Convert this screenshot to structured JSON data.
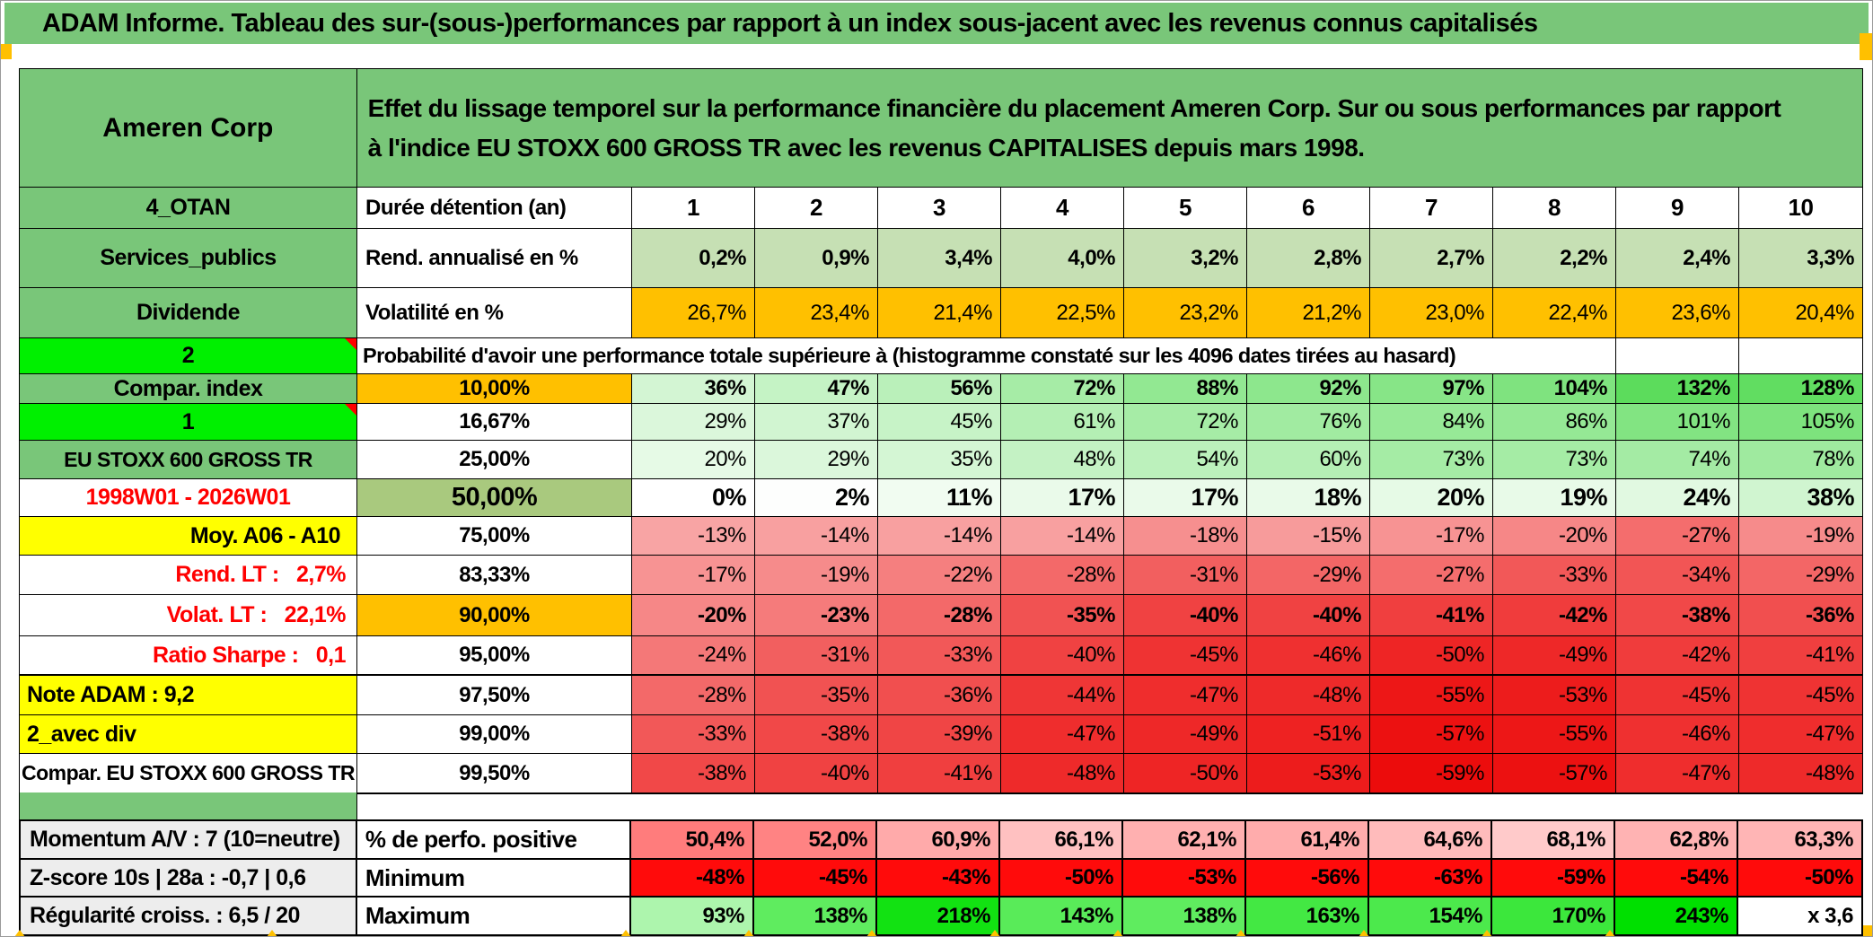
{
  "app": {
    "title": "ADAM Informe. Tableau des sur-(sous-)performances par rapport à un index sous-jacent avec les revenus connus capitalisés"
  },
  "header": {
    "security": "Ameren Corp",
    "description": "Effet du lissage temporel sur la performance financière du placement Ameren Corp. Sur ou sous performances par rapport à l'indice EU STOXX 600 GROSS TR avec les revenus CAPITALISES depuis mars 1998."
  },
  "colors": {
    "header_green": "#79C679",
    "bright_green": "#00F000",
    "orange": "#FFC000",
    "yellow": "#FFFF00",
    "olive_green": "#A9C97E",
    "light_green": "#C6E0B4",
    "label_gray": "#EDEDED",
    "red_text": "#FF0000",
    "heat_red_max": "#EC0C0C",
    "heat_green_max": "#5CDC5C"
  },
  "rows": {
    "duration": {
      "label": "4_OTAN",
      "metric": "Durée détention (an)",
      "values": [
        "1",
        "2",
        "3",
        "4",
        "5",
        "6",
        "7",
        "8",
        "9",
        "10"
      ]
    },
    "annual": {
      "label": "Services_publics",
      "metric": "Rend. annualisé en %",
      "values": [
        "0,2%",
        "0,9%",
        "3,4%",
        "4,0%",
        "3,2%",
        "2,8%",
        "2,7%",
        "2,2%",
        "2,4%",
        "3,3%"
      ]
    },
    "volatility": {
      "label": "Dividende",
      "metric": "Volatilité en %",
      "values": [
        "26,7%",
        "23,4%",
        "21,4%",
        "22,5%",
        "23,2%",
        "21,2%",
        "23,0%",
        "22,4%",
        "23,6%",
        "20,4%"
      ]
    },
    "prob": {
      "label": "2",
      "text": "Probabilité d'avoir une performance totale supérieure à (histogramme constaté sur les 4096 dates tirées au hasard)"
    },
    "p10": {
      "label": "Compar. index",
      "metric": "10,00%",
      "values": [
        "36%",
        "47%",
        "56%",
        "72%",
        "88%",
        "92%",
        "97%",
        "104%",
        "132%",
        "128%"
      ]
    },
    "p1667": {
      "label": "1",
      "metric": "16,67%",
      "values": [
        "29%",
        "37%",
        "45%",
        "61%",
        "72%",
        "76%",
        "84%",
        "86%",
        "101%",
        "105%"
      ]
    },
    "p25": {
      "label": "EU STOXX 600 GROSS TR",
      "metric": "25,00%",
      "values": [
        "20%",
        "29%",
        "35%",
        "48%",
        "54%",
        "60%",
        "73%",
        "73%",
        "74%",
        "78%"
      ]
    },
    "p50": {
      "label": "1998W01 - 2026W01",
      "metric": "50,00%",
      "values": [
        "0%",
        "2%",
        "11%",
        "17%",
        "17%",
        "18%",
        "20%",
        "19%",
        "24%",
        "38%"
      ]
    },
    "p75": {
      "label": "Moy. A06 - A10",
      "metric": "75,00%",
      "values": [
        "-13%",
        "-14%",
        "-14%",
        "-14%",
        "-18%",
        "-15%",
        "-17%",
        "-20%",
        "-27%",
        "-19%"
      ]
    },
    "p8333": {
      "label": "Rend. LT :   2,7%",
      "metric": "83,33%",
      "values": [
        "-17%",
        "-19%",
        "-22%",
        "-28%",
        "-31%",
        "-29%",
        "-27%",
        "-33%",
        "-34%",
        "-29%"
      ]
    },
    "p90": {
      "label": "Volat. LT :   22,1%",
      "metric": "90,00%",
      "values": [
        "-20%",
        "-23%",
        "-28%",
        "-35%",
        "-40%",
        "-40%",
        "-41%",
        "-42%",
        "-38%",
        "-36%"
      ]
    },
    "p95": {
      "label": "Ratio Sharpe :   0,1",
      "metric": "95,00%",
      "values": [
        "-24%",
        "-31%",
        "-33%",
        "-40%",
        "-45%",
        "-46%",
        "-50%",
        "-49%",
        "-42%",
        "-41%"
      ]
    },
    "p975": {
      "label": "Note ADAM : 9,2",
      "metric": "97,50%",
      "values": [
        "-28%",
        "-35%",
        "-36%",
        "-44%",
        "-47%",
        "-48%",
        "-55%",
        "-53%",
        "-45%",
        "-45%"
      ]
    },
    "p99": {
      "label": "2_avec div",
      "metric": "99,00%",
      "values": [
        "-33%",
        "-38%",
        "-39%",
        "-47%",
        "-49%",
        "-51%",
        "-57%",
        "-55%",
        "-46%",
        "-47%"
      ]
    },
    "p995": {
      "label": "Compar. EU STOXX 600 GROSS TR",
      "metric": "99,50%",
      "values": [
        "-38%",
        "-40%",
        "-41%",
        "-48%",
        "-50%",
        "-53%",
        "-59%",
        "-57%",
        "-47%",
        "-48%"
      ]
    },
    "positive": {
      "label": "Momentum A/V : 7 (10=neutre)",
      "metric": "% de perfo. positive",
      "values": [
        "50,4%",
        "52,0%",
        "60,9%",
        "66,1%",
        "62,1%",
        "61,4%",
        "64,6%",
        "68,1%",
        "62,8%",
        "63,3%"
      ]
    },
    "minimum": {
      "label": "Z-score 10s | 28a : -0,7 | 0,6",
      "metric": "Minimum",
      "values": [
        "-48%",
        "-45%",
        "-43%",
        "-50%",
        "-53%",
        "-56%",
        "-63%",
        "-59%",
        "-54%",
        "-50%"
      ]
    },
    "maximum": {
      "label": "Régularité croiss. : 6,5 / 20",
      "metric": "Maximum",
      "values": [
        "93%",
        "138%",
        "218%",
        "143%",
        "138%",
        "163%",
        "154%",
        "170%",
        "243%",
        "x 3,6"
      ]
    }
  }
}
